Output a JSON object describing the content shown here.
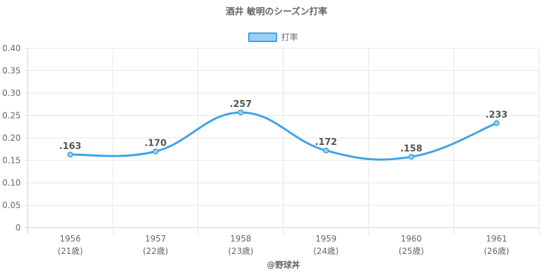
{
  "chart_data": {
    "type": "line",
    "title": "酒井 敏明のシーズン打率",
    "categories": [
      "1956",
      "1957",
      "1958",
      "1959",
      "1960",
      "1961"
    ],
    "category_sublabels": [
      "(21歳)",
      "(22歳)",
      "(23歳)",
      "(24歳)",
      "(25歳)",
      "(26歳)"
    ],
    "series": [
      {
        "name": "打率",
        "values": [
          0.163,
          0.17,
          0.257,
          0.172,
          0.158,
          0.233
        ],
        "labels": [
          ".163",
          ".170",
          ".257",
          ".172",
          ".158",
          ".233"
        ]
      }
    ],
    "ylim": [
      0,
      0.4
    ],
    "yticks": [
      "0",
      "0.05",
      "0.10",
      "0.15",
      "0.20",
      "0.25",
      "0.30",
      "0.35",
      "0.40"
    ],
    "grid": true,
    "legend_position": "top",
    "colors": {
      "line": "#3ea3e6",
      "fill": "#9ccff2",
      "grid": "#e6e6e6",
      "axis": "#cccccc"
    }
  },
  "footer": "@野球丼"
}
